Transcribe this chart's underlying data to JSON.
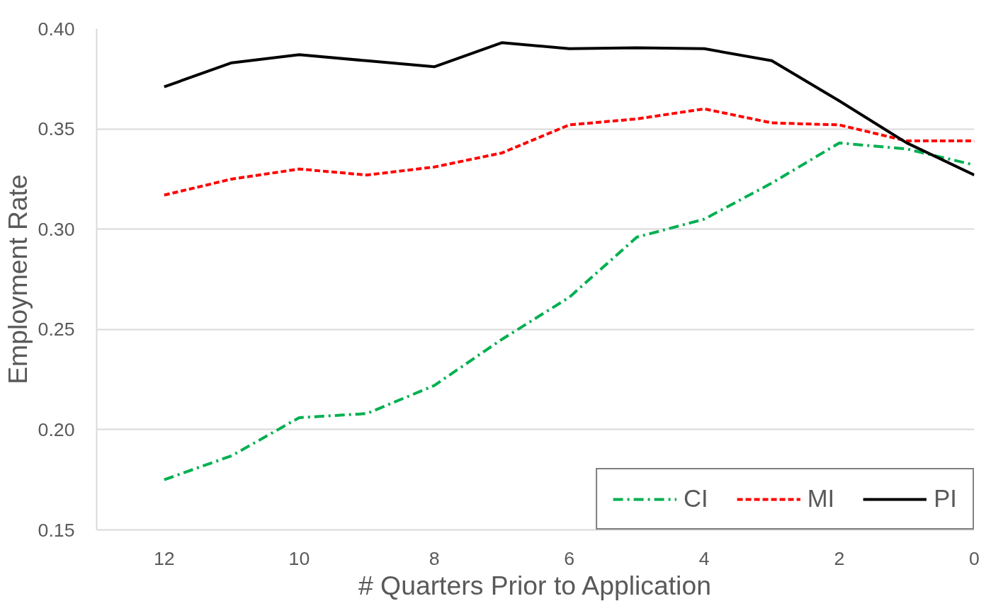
{
  "chart_data": {
    "type": "line",
    "xlabel": "# Quarters Prior to Application",
    "ylabel": "Employment Rate",
    "x": [
      12,
      11,
      10,
      9,
      8,
      7,
      6,
      5,
      4,
      3,
      2,
      1,
      0
    ],
    "series": [
      {
        "name": "CI",
        "color": "#00b050",
        "line_style": "dashdot",
        "values": [
          0.175,
          0.187,
          0.206,
          0.208,
          0.222,
          0.245,
          0.266,
          0.296,
          0.305,
          0.323,
          0.343,
          0.34,
          0.332
        ]
      },
      {
        "name": "MI",
        "color": "#ff0000",
        "line_style": "dashed",
        "values": [
          0.317,
          0.325,
          0.33,
          0.327,
          0.331,
          0.338,
          0.352,
          0.355,
          0.36,
          0.353,
          0.352,
          0.344,
          0.344
        ]
      },
      {
        "name": "PI",
        "color": "#000000",
        "line_style": "solid",
        "values": [
          0.371,
          0.383,
          0.387,
          0.384,
          0.381,
          0.393,
          0.39,
          0.3905,
          0.39,
          0.384,
          0.364,
          0.343,
          0.327
        ]
      }
    ],
    "xlim": [
      13,
      0
    ],
    "xticks": [
      12,
      10,
      8,
      6,
      4,
      2,
      0
    ],
    "ylim": [
      0.15,
      0.4
    ],
    "yticks": [
      {
        "value": 0.15,
        "label": "0.15"
      },
      {
        "value": 0.2,
        "label": "0.20"
      },
      {
        "value": 0.25,
        "label": "0.25"
      },
      {
        "value": 0.3,
        "label": "0.30"
      },
      {
        "value": 0.35,
        "label": "0.35"
      },
      {
        "value": 0.4,
        "label": "0.40"
      }
    ],
    "grid": "y",
    "legend": "bottom right",
    "marker": "none"
  }
}
